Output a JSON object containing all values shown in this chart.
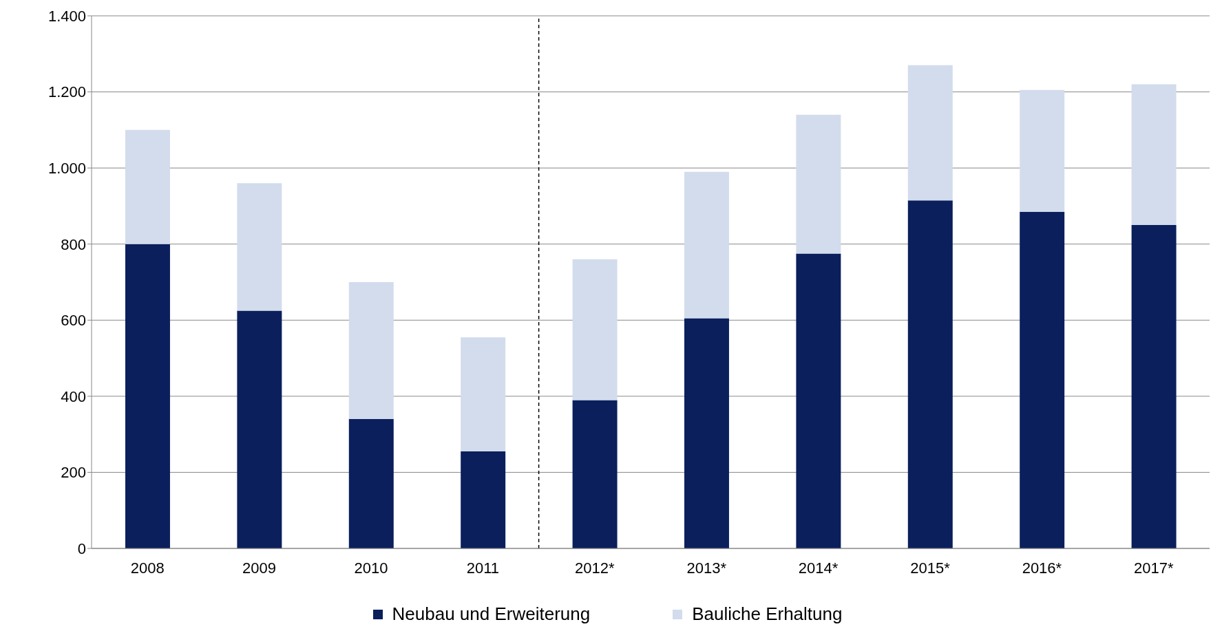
{
  "chart_data": {
    "type": "bar",
    "stacked": true,
    "categories": [
      "2008",
      "2009",
      "2010",
      "2011",
      "2012*",
      "2013*",
      "2014*",
      "2015*",
      "2016*",
      "2017*"
    ],
    "series": [
      {
        "name": "Neubau und Erweiterung",
        "color": "#0a1f5c",
        "values": [
          800,
          625,
          340,
          255,
          390,
          605,
          775,
          915,
          885,
          850
        ]
      },
      {
        "name": "Bauliche Erhaltung",
        "color": "#d2dced",
        "values": [
          300,
          335,
          360,
          300,
          370,
          385,
          365,
          355,
          320,
          370
        ]
      }
    ],
    "ylim": [
      0,
      1400
    ],
    "yticks": [
      0,
      {
        "value": 200,
        "label": "200"
      },
      {
        "value": 400,
        "label": "400"
      },
      {
        "value": 600,
        "label": "600"
      },
      {
        "value": 800,
        "label": "800"
      },
      {
        "value": 1000,
        "label": "1.000"
      },
      {
        "value": 1200,
        "label": "1.200"
      },
      {
        "value": 1400,
        "label": "1.400"
      }
    ],
    "grid": "y",
    "legend": "bottom",
    "ref_lines": [
      {
        "axis": "x",
        "value": "2012*",
        "line_style": "dashed",
        "color": "#000000"
      }
    ]
  }
}
